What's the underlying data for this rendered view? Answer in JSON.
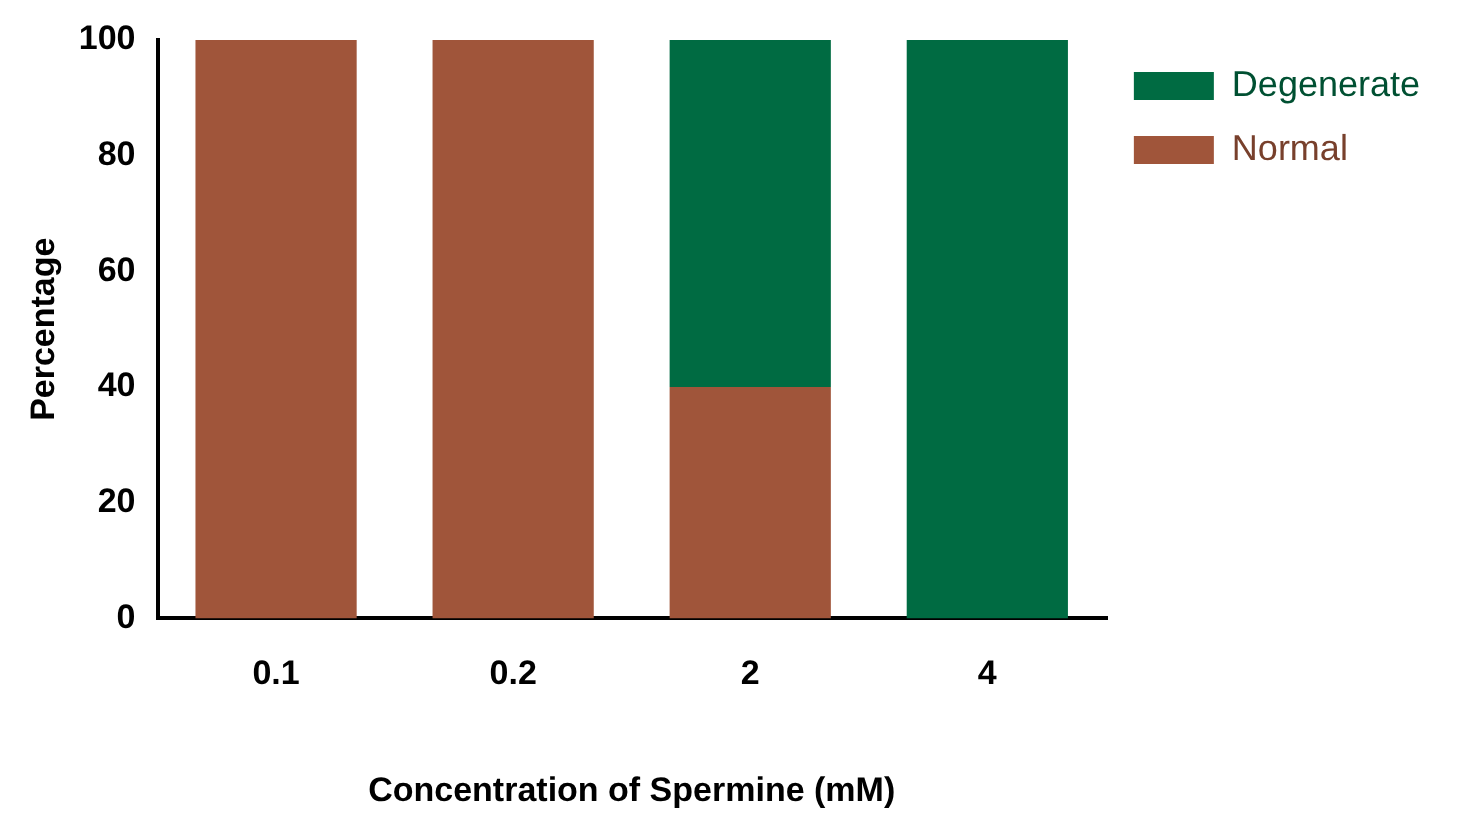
{
  "chart_data": {
    "type": "bar",
    "stacked": true,
    "xlabel": "Concentration of Spermine (mM)",
    "ylabel": "Percentage",
    "categories": [
      "0.1",
      "0.2",
      "2",
      "4"
    ],
    "series": [
      {
        "name": "Normal",
        "color": "#a0553a",
        "values": [
          100,
          100,
          40,
          0
        ]
      },
      {
        "name": "Degenerate",
        "color": "#006b42",
        "values": [
          0,
          0,
          60,
          100
        ]
      }
    ],
    "ylim": [
      0,
      100
    ],
    "yticks": [
      0,
      20,
      40,
      60,
      80,
      100
    ],
    "grid": false,
    "legend": "top right"
  }
}
